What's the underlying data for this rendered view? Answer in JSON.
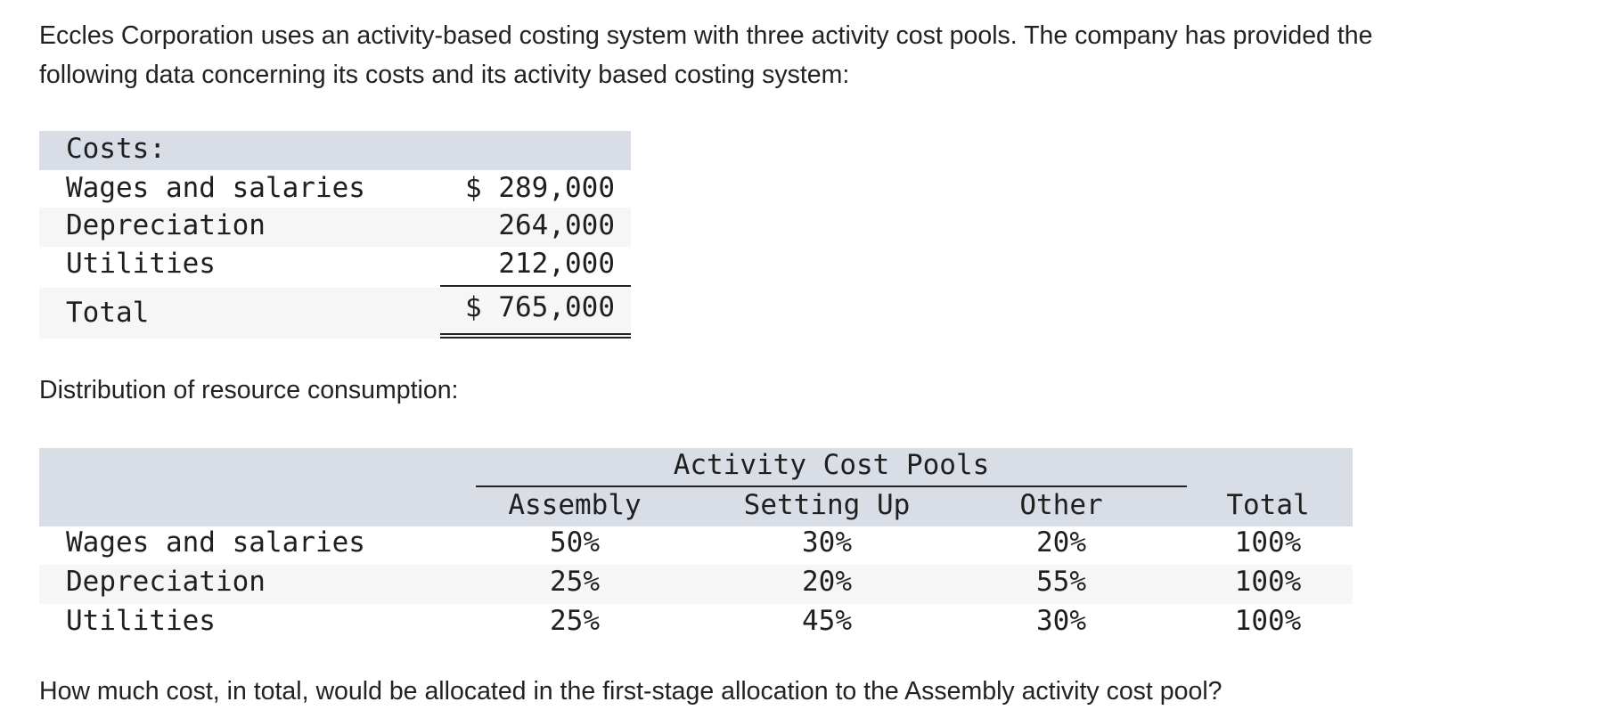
{
  "intro": {
    "line1": "Eccles Corporation uses an activity-based costing system with three activity cost pools. The company has provided the",
    "line2": "following data concerning its costs and its activity based costing system:"
  },
  "costs_table": {
    "header": "Costs:",
    "rows": [
      {
        "label": "Wages and salaries",
        "value": "$ 289,000"
      },
      {
        "label": "Depreciation",
        "value": "264,000"
      },
      {
        "label": "Utilities",
        "value": "212,000"
      }
    ],
    "total": {
      "label": "Total",
      "value": "$ 765,000"
    }
  },
  "distribution_label": "Distribution of resource consumption:",
  "distribution_table": {
    "group_header": "Activity Cost Pools",
    "columns": [
      "Assembly",
      "Setting Up",
      "Other",
      "Total"
    ],
    "rows": [
      {
        "label": "Wages and salaries",
        "values": [
          "50%",
          "30%",
          "20%",
          "100%"
        ]
      },
      {
        "label": "Depreciation",
        "values": [
          "25%",
          "20%",
          "55%",
          "100%"
        ]
      },
      {
        "label": "Utilities",
        "values": [
          "25%",
          "45%",
          "30%",
          "100%"
        ]
      }
    ]
  },
  "question": "How much cost, in total, would be allocated in the first-stage allocation to the Assembly activity cost pool?",
  "colors": {
    "header_band": "#d8dde6",
    "alt_row": "#f6f6f6",
    "text": "#222222"
  }
}
